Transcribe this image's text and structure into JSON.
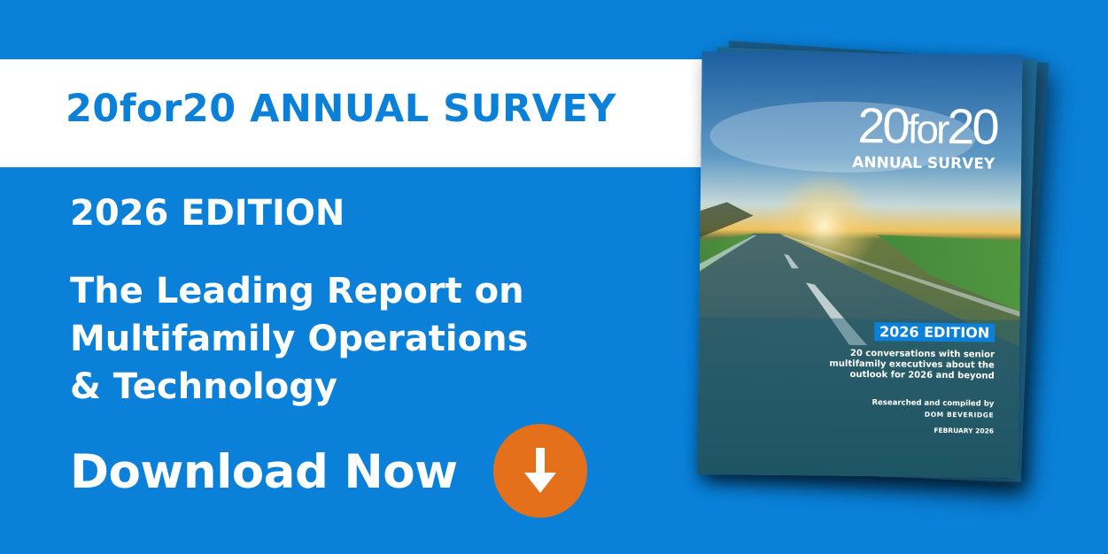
{
  "banner": {
    "title": "20for20 ANNUAL SURVEY"
  },
  "edition": "2026 EDITION",
  "tagline": [
    "The Leading Report on",
    "Multifamily Operations",
    "& Technology"
  ],
  "cta": {
    "label": "Download Now",
    "icon": "arrow-down-icon"
  },
  "colors": {
    "background": "#0a80d8",
    "accent": "#e4701c",
    "banner": "#ffffff"
  },
  "cover": {
    "logo_a": "20",
    "logo_b": "for",
    "logo_c": "20",
    "subtitle": "ANNUAL SURVEY",
    "edition": "2026 EDITION",
    "description": "20 conversations with senior multifamily executives about the outlook for 2026 and beyond",
    "credit": "Researched and compiled by",
    "author": "DOM BEVERIDGE",
    "date": "FEBRUARY 2026"
  }
}
